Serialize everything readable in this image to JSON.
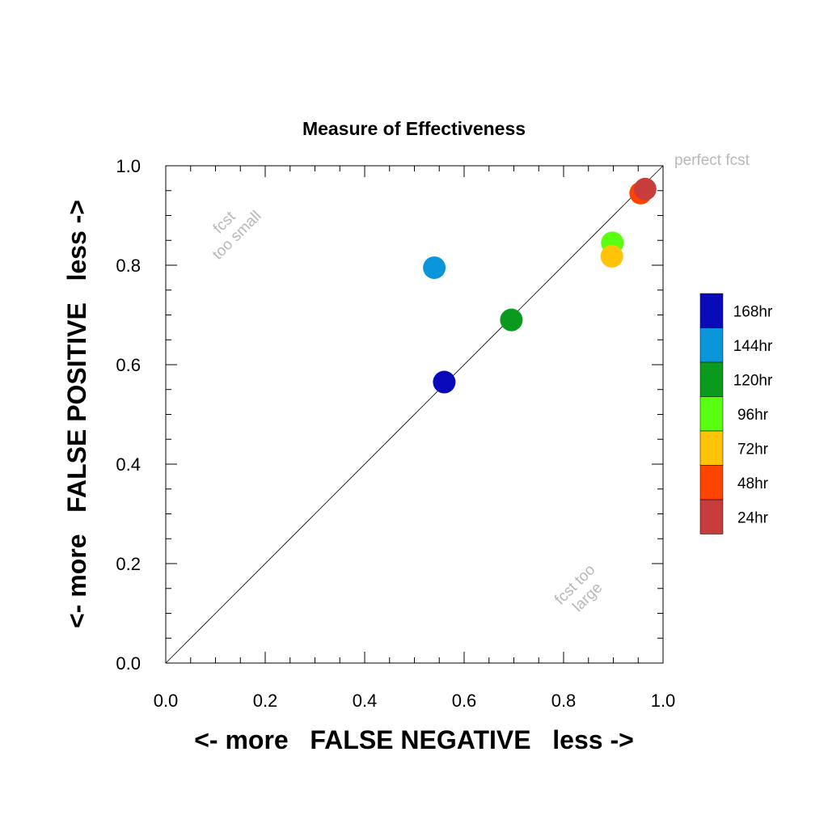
{
  "chart_data": {
    "type": "scatter",
    "title": "Measure of Effectiveness",
    "xlabel": "<- more   FALSE NEGATIVE   less ->",
    "ylabel": "<- more   FALSE POSITIVE   less ->",
    "xlim": [
      0.0,
      1.0
    ],
    "ylim": [
      0.0,
      1.0
    ],
    "xticks": [
      "0.0",
      "0.2",
      "0.4",
      "0.6",
      "0.8",
      "1.0"
    ],
    "yticks": [
      "0.0",
      "0.2",
      "0.4",
      "0.6",
      "0.8",
      "1.0"
    ],
    "grid": false,
    "diagonal_reference_line": true,
    "annotations": {
      "perfect": "perfect fcst",
      "too_small_line1": "fcst",
      "too_small_line2": "too small",
      "too_large_line1": "fcst too",
      "too_large_line2": "large"
    },
    "legend_position": "right",
    "points": [
      {
        "name": "168hr",
        "x": 0.56,
        "y": 0.565,
        "color": "#0a0ab8"
      },
      {
        "name": "144hr",
        "x": 0.54,
        "y": 0.795,
        "color": "#0a96d8"
      },
      {
        "name": "120hr",
        "x": 0.695,
        "y": 0.69,
        "color": "#0a9a1e"
      },
      {
        "name": "96hr",
        "x": 0.898,
        "y": 0.845,
        "color": "#5aff10"
      },
      {
        "name": "72hr",
        "x": 0.897,
        "y": 0.818,
        "color": "#ffc40a"
      },
      {
        "name": "48hr",
        "x": 0.955,
        "y": 0.945,
        "color": "#ff4400"
      },
      {
        "name": "24hr",
        "x": 0.964,
        "y": 0.953,
        "color": "#c83c3c"
      }
    ]
  }
}
